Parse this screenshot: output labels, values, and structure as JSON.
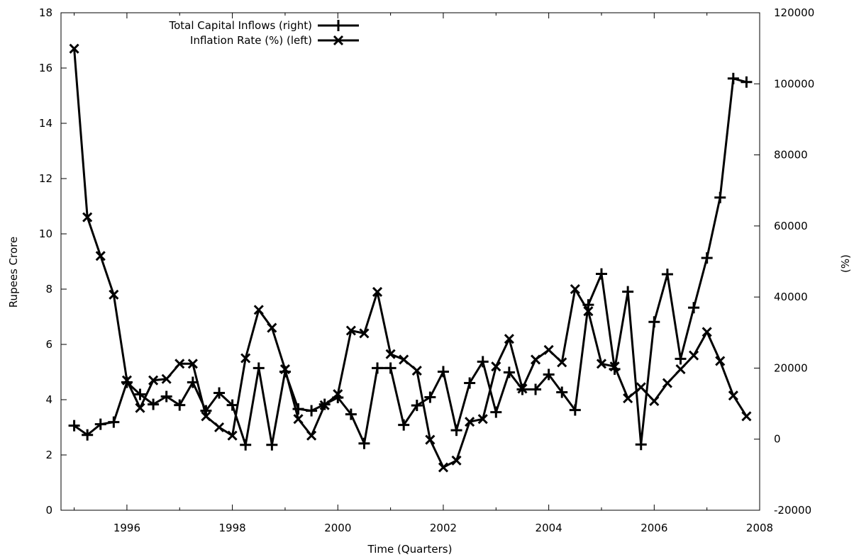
{
  "chart_data": {
    "type": "line",
    "xlabel": "Time (Quarters)",
    "ylabel_left": "Rupees Crore",
    "ylabel_right": "(%)",
    "xlim": [
      1994.75,
      2008.0
    ],
    "ylim_left": [
      0,
      18
    ],
    "ylim_right": [
      -20000,
      120000
    ],
    "x_ticks": [
      1996,
      1998,
      2000,
      2002,
      2004,
      2006,
      2008
    ],
    "y_ticks_left": [
      0,
      2,
      4,
      6,
      8,
      10,
      12,
      14,
      16,
      18
    ],
    "y_ticks_right": [
      -20000,
      0,
      20000,
      40000,
      60000,
      80000,
      100000,
      120000
    ],
    "grid": false,
    "legend_position": "top-left",
    "x": [
      1995.0,
      1995.25,
      1995.5,
      1995.75,
      1996.0,
      1996.25,
      1996.5,
      1996.75,
      1997.0,
      1997.25,
      1997.5,
      1997.75,
      1998.0,
      1998.25,
      1998.5,
      1998.75,
      1999.0,
      1999.25,
      1999.5,
      1999.75,
      2000.0,
      2000.25,
      2000.5,
      2000.75,
      2001.0,
      2001.25,
      2001.5,
      2001.75,
      2002.0,
      2002.25,
      2002.5,
      2002.75,
      2003.0,
      2003.25,
      2003.5,
      2003.75,
      2004.0,
      2004.25,
      2004.5,
      2004.75,
      2005.0,
      2005.25,
      2005.5,
      2005.75,
      2006.0,
      2006.25,
      2006.5,
      2006.75,
      2007.0,
      2007.25,
      2007.5,
      2007.75
    ],
    "series": [
      {
        "name": "Total Capital Inflows (right)",
        "axis": "right",
        "marker": "plus",
        "values": [
          3800,
          1200,
          4200,
          4800,
          16000,
          12600,
          9800,
          12000,
          9600,
          16000,
          8000,
          13000,
          9600,
          -1600,
          20000,
          -1600,
          19000,
          8500,
          8000,
          9800,
          11700,
          7000,
          -1200,
          20000,
          20000,
          4000,
          9500,
          11800,
          19000,
          2500,
          15800,
          21800,
          7600,
          18800,
          14000,
          14000,
          18200,
          13200,
          8200,
          37800,
          46500,
          19700,
          41500,
          -1500,
          33000,
          46400,
          22600,
          37000,
          51000,
          68000,
          101500,
          100500
        ]
      },
      {
        "name": "Inflation Rate (%) (left)",
        "axis": "left",
        "marker": "cross",
        "values": [
          16.7,
          10.6,
          9.2,
          7.8,
          4.7,
          3.7,
          4.7,
          4.75,
          5.3,
          5.3,
          3.4,
          3.0,
          2.7,
          5.5,
          7.25,
          6.6,
          5.1,
          3.3,
          2.7,
          3.8,
          4.2,
          6.5,
          6.4,
          7.9,
          5.65,
          5.45,
          5.05,
          2.55,
          1.55,
          1.8,
          3.2,
          3.3,
          5.2,
          6.2,
          4.4,
          5.45,
          5.8,
          5.35,
          8.0,
          7.2,
          5.3,
          5.2,
          4.05,
          4.45,
          3.95,
          4.6,
          5.1,
          5.6,
          6.45,
          5.4,
          4.15,
          3.4
        ]
      }
    ]
  }
}
